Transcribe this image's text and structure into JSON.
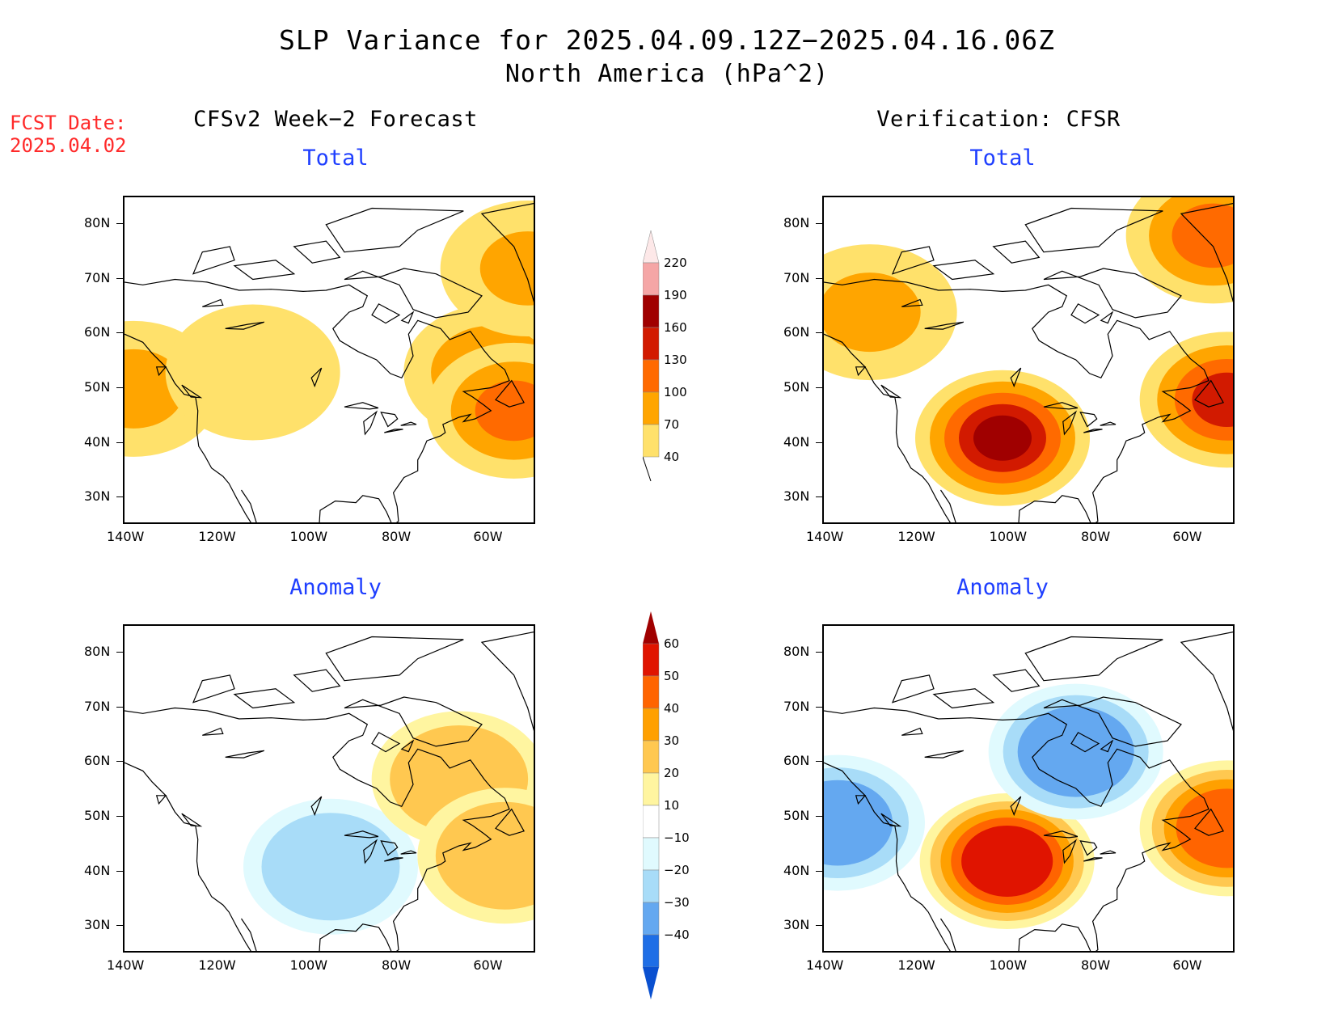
{
  "title": {
    "line1": "SLP Variance for 2025.04.09.12Z−2025.04.16.06Z",
    "line2": "North America (hPa^2)"
  },
  "fcst_date": {
    "label": "FCST Date:",
    "value": "2025.04.02"
  },
  "columns": {
    "left": "CFSv2 Week−2 Forecast",
    "right": "Verification: CFSR"
  },
  "subtitles": {
    "top_left": "Total",
    "top_right": "Total",
    "bottom_left": "Anomaly",
    "bottom_right": "Anomaly"
  },
  "axes": {
    "lat_labels": [
      "80N",
      "70N",
      "60N",
      "50N",
      "40N",
      "30N"
    ],
    "lon_labels": [
      "140W",
      "120W",
      "100W",
      "80W",
      "60W"
    ]
  },
  "map_extent": {
    "lon": [
      -140,
      -50
    ],
    "lat": [
      25,
      85
    ]
  },
  "colorbars": {
    "total": {
      "labels": [
        "220",
        "190",
        "160",
        "130",
        "100",
        "70",
        "40"
      ],
      "colors": [
        "#f5a6a6",
        "#a00000",
        "#d21a00",
        "#ff6a00",
        "#ffa500",
        "#ffe16b"
      ]
    },
    "anomaly": {
      "labels": [
        "60",
        "50",
        "40",
        "30",
        "20",
        "10",
        "−10",
        "−20",
        "−30",
        "−40"
      ],
      "colors": [
        "#a00000",
        "#e01400",
        "#ff6400",
        "#ffa000",
        "#ffc850",
        "#fff5a0",
        "#ffffff",
        "#e0fafe",
        "#a8dcf8",
        "#64a8f0",
        "#1e6ee6",
        "#0a50d0"
      ]
    }
  },
  "fields": {
    "forecast_total": [
      {
        "lon": -138,
        "lat": 50,
        "v": 75
      },
      {
        "lon": -112,
        "lat": 53,
        "v": 55
      },
      {
        "lon": -60,
        "lat": 53,
        "v": 95
      },
      {
        "lon": -55,
        "lat": 46,
        "v": 105
      },
      {
        "lon": -52,
        "lat": 72,
        "v": 70
      }
    ],
    "verification_total": [
      {
        "lon": -101,
        "lat": 41,
        "v": 165
      },
      {
        "lon": -52,
        "lat": 48,
        "v": 140
      },
      {
        "lon": -55,
        "lat": 78,
        "v": 110
      },
      {
        "lon": -130,
        "lat": 64,
        "v": 75
      }
    ],
    "forecast_anomaly": [
      {
        "lon": -95,
        "lat": 41,
        "v": -25
      },
      {
        "lon": -67,
        "lat": 57,
        "v": 25
      },
      {
        "lon": -57,
        "lat": 43,
        "v": 25
      }
    ],
    "verification_anomaly": [
      {
        "lon": -100,
        "lat": 42,
        "v": 55
      },
      {
        "lon": -52,
        "lat": 48,
        "v": 45
      },
      {
        "lon": -85,
        "lat": 62,
        "v": -35
      },
      {
        "lon": -137,
        "lat": 49,
        "v": -30
      }
    ]
  }
}
